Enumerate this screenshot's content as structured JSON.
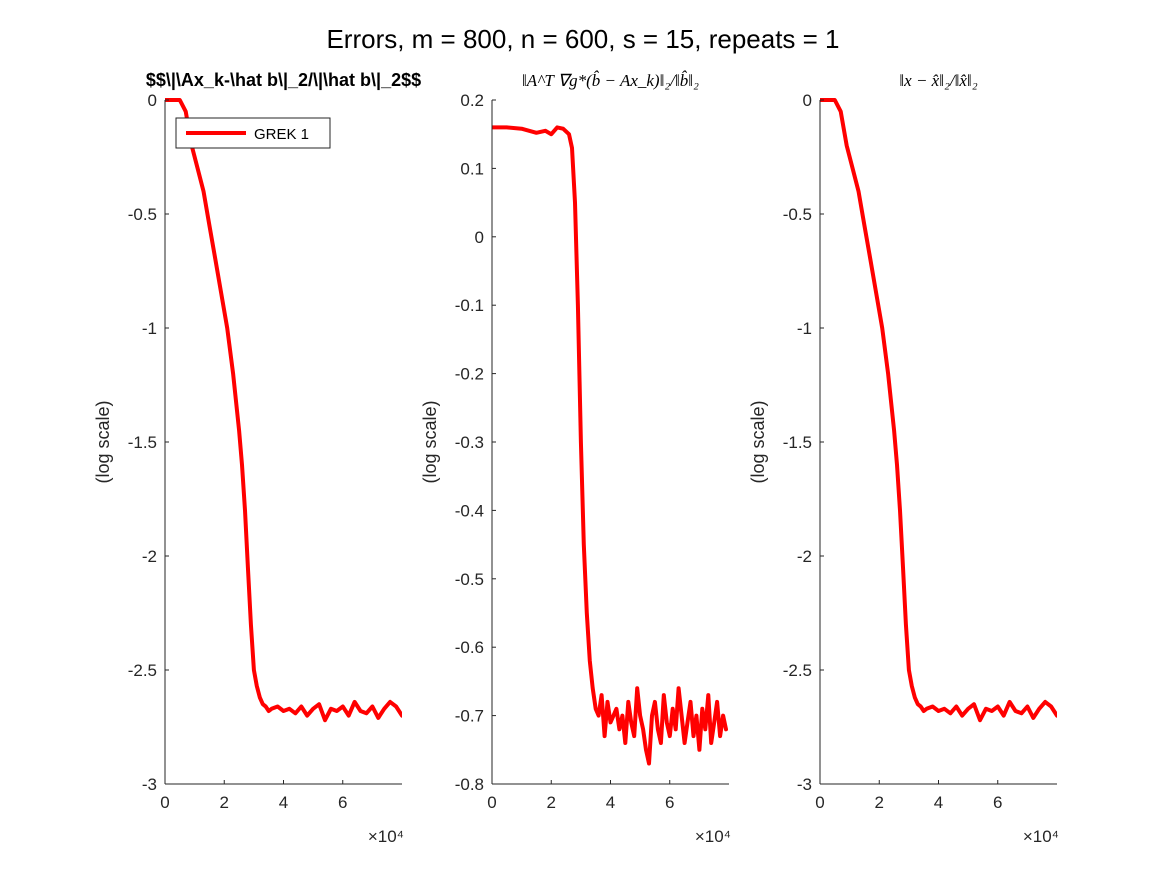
{
  "figure": {
    "title": "Errors, m = 800, n = 600, s = 15, repeats = 1",
    "exp_label": "×10⁴"
  },
  "colors": {
    "series": "#ff0000",
    "axis": "#262626"
  },
  "legend": {
    "entry": "GREK 1",
    "placement": "top-left of first subplot"
  },
  "chart_data": [
    {
      "type": "line",
      "title": "$$\\|\\Ax_k-\\hat b\\|_2/\\|\\hat b\\|_2$$",
      "ylabel": "(log scale)",
      "xlim": [
        0,
        80000
      ],
      "ylim": [
        -3,
        0
      ],
      "xticks": [
        0,
        20000,
        40000,
        60000
      ],
      "xtick_labels": [
        "0",
        "2",
        "4",
        "6"
      ],
      "yticks": [
        0,
        -0.5,
        -1,
        -1.5,
        -2,
        -2.5,
        -3
      ],
      "ytick_labels": [
        "0",
        "-0.5",
        "-1",
        "-1.5",
        "-2",
        "-2.5",
        "-3"
      ],
      "grid": false,
      "series": [
        {
          "name": "GREK 1",
          "x": [
            0,
            5000,
            7000,
            9000,
            11000,
            13000,
            15000,
            17000,
            19000,
            21000,
            23000,
            25000,
            26000,
            27000,
            28000,
            29000,
            30000,
            31000,
            32000,
            33000,
            34000,
            35000,
            36000,
            38000,
            40000,
            42000,
            44000,
            46000,
            48000,
            50000,
            52000,
            54000,
            56000,
            58000,
            60000,
            62000,
            64000,
            66000,
            68000,
            70000,
            72000,
            74000,
            76000,
            78000,
            80000
          ],
          "y": [
            0,
            0,
            -0.05,
            -0.2,
            -0.3,
            -0.4,
            -0.55,
            -0.7,
            -0.85,
            -1.0,
            -1.2,
            -1.45,
            -1.6,
            -1.8,
            -2.05,
            -2.3,
            -2.5,
            -2.57,
            -2.62,
            -2.65,
            -2.66,
            -2.68,
            -2.67,
            -2.66,
            -2.68,
            -2.67,
            -2.69,
            -2.66,
            -2.7,
            -2.67,
            -2.65,
            -2.72,
            -2.67,
            -2.68,
            -2.66,
            -2.7,
            -2.64,
            -2.68,
            -2.69,
            -2.66,
            -2.71,
            -2.67,
            -2.64,
            -2.66,
            -2.7
          ]
        }
      ]
    },
    {
      "type": "line",
      "title": "‖A^T ∇g*(b̂ − Ax_k)‖₂/‖b̂‖₂",
      "ylabel": "(log scale)",
      "xlim": [
        0,
        80000
      ],
      "ylim": [
        -0.8,
        0.2
      ],
      "xticks": [
        0,
        20000,
        40000,
        60000
      ],
      "xtick_labels": [
        "0",
        "2",
        "4",
        "6"
      ],
      "yticks": [
        0.2,
        0.1,
        0,
        -0.1,
        -0.2,
        -0.3,
        -0.4,
        -0.5,
        -0.6,
        -0.7,
        -0.8
      ],
      "ytick_labels": [
        "0.2",
        "0.1",
        "0",
        "-0.1",
        "-0.2",
        "-0.3",
        "-0.4",
        "-0.5",
        "-0.6",
        "-0.7",
        "-0.8"
      ],
      "grid": false,
      "series": [
        {
          "name": "GREK 1",
          "x": [
            0,
            5000,
            10000,
            15000,
            18000,
            20000,
            22000,
            24000,
            26000,
            27000,
            28000,
            29000,
            30000,
            31000,
            32000,
            33000,
            34000,
            35000,
            36000,
            37000,
            38000,
            39000,
            40000,
            41000,
            42000,
            43000,
            44000,
            45000,
            46000,
            47000,
            48000,
            49000,
            50000,
            51000,
            52000,
            53000,
            54000,
            55000,
            56000,
            57000,
            58000,
            59000,
            60000,
            61000,
            62000,
            63000,
            64000,
            65000,
            66000,
            67000,
            68000,
            69000,
            70000,
            71000,
            72000,
            73000,
            74000,
            75000,
            76000,
            77000,
            78000,
            79000
          ],
          "y": [
            0.16,
            0.16,
            0.158,
            0.152,
            0.155,
            0.15,
            0.16,
            0.158,
            0.15,
            0.13,
            0.05,
            -0.1,
            -0.3,
            -0.45,
            -0.55,
            -0.62,
            -0.66,
            -0.69,
            -0.7,
            -0.67,
            -0.73,
            -0.68,
            -0.71,
            -0.7,
            -0.69,
            -0.72,
            -0.7,
            -0.74,
            -0.68,
            -0.71,
            -0.73,
            -0.66,
            -0.7,
            -0.72,
            -0.75,
            -0.77,
            -0.7,
            -0.68,
            -0.72,
            -0.74,
            -0.67,
            -0.71,
            -0.73,
            -0.69,
            -0.72,
            -0.66,
            -0.7,
            -0.74,
            -0.71,
            -0.68,
            -0.73,
            -0.7,
            -0.75,
            -0.69,
            -0.72,
            -0.67,
            -0.74,
            -0.71,
            -0.68,
            -0.73,
            -0.7,
            -0.72
          ]
        }
      ]
    },
    {
      "type": "line",
      "title": "‖x − x̂‖₂/‖x̂‖₂",
      "ylabel": "(log scale)",
      "xlim": [
        0,
        80000
      ],
      "ylim": [
        -3,
        0
      ],
      "xticks": [
        0,
        20000,
        40000,
        60000
      ],
      "xtick_labels": [
        "0",
        "2",
        "4",
        "6"
      ],
      "yticks": [
        0,
        -0.5,
        -1,
        -1.5,
        -2,
        -2.5,
        -3
      ],
      "ytick_labels": [
        "0",
        "-0.5",
        "-1",
        "-1.5",
        "-2",
        "-2.5",
        "-3"
      ],
      "grid": false,
      "series": [
        {
          "name": "GREK 1",
          "x": [
            0,
            5000,
            7000,
            9000,
            11000,
            13000,
            15000,
            17000,
            19000,
            21000,
            23000,
            25000,
            26000,
            27000,
            28000,
            29000,
            30000,
            31000,
            32000,
            33000,
            34000,
            35000,
            36000,
            38000,
            40000,
            42000,
            44000,
            46000,
            48000,
            50000,
            52000,
            54000,
            56000,
            58000,
            60000,
            62000,
            64000,
            66000,
            68000,
            70000,
            72000,
            74000,
            76000,
            78000,
            80000
          ],
          "y": [
            0,
            0,
            -0.05,
            -0.2,
            -0.3,
            -0.4,
            -0.55,
            -0.7,
            -0.85,
            -1.0,
            -1.2,
            -1.45,
            -1.6,
            -1.8,
            -2.05,
            -2.3,
            -2.5,
            -2.57,
            -2.62,
            -2.65,
            -2.66,
            -2.68,
            -2.67,
            -2.66,
            -2.68,
            -2.67,
            -2.69,
            -2.66,
            -2.7,
            -2.67,
            -2.65,
            -2.72,
            -2.67,
            -2.68,
            -2.66,
            -2.7,
            -2.64,
            -2.68,
            -2.69,
            -2.66,
            -2.71,
            -2.67,
            -2.64,
            -2.66,
            -2.7
          ]
        }
      ]
    }
  ]
}
